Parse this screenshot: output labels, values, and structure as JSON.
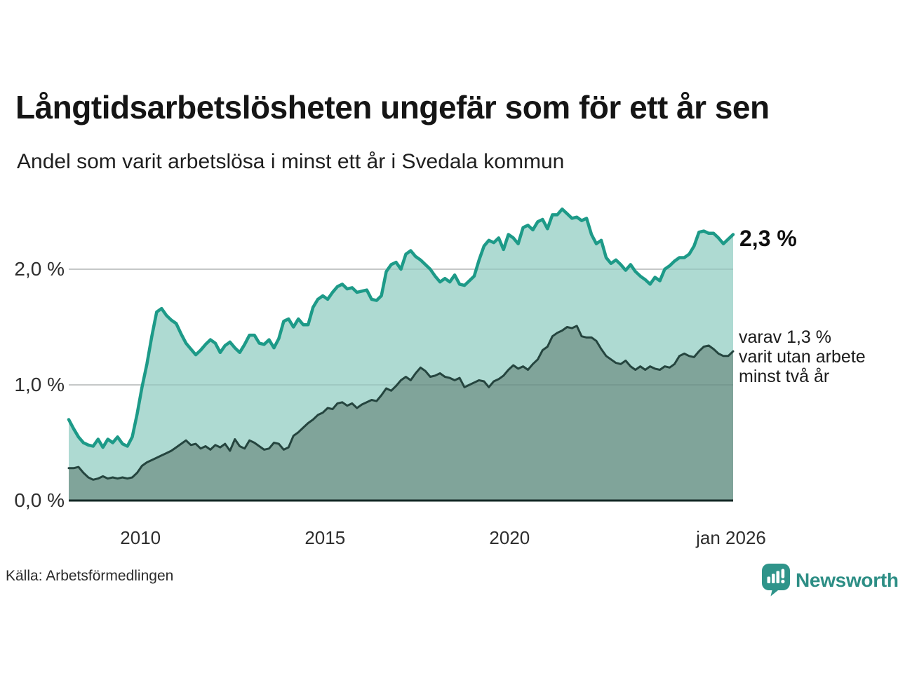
{
  "title": "Långtidsarbetslösheten ungefär som för ett år sen",
  "subtitle": "Andel som varit arbetslösa i minst ett år i Svedala kommun",
  "source": "Källa: Arbetsförmedlingen",
  "brand": {
    "name": "Newsworthy",
    "color": "#2d8e85",
    "icon_color": "#2f948a",
    "icon": "speech-bubble-bar-chart-icon"
  },
  "annotations": {
    "series1_end_label": "2,3 %",
    "series2_end_label_lines": [
      "varav 1,3 %",
      "varit utan arbete",
      "minst två år"
    ]
  },
  "chart_data": {
    "type": "area",
    "title": "Långtidsarbetslösheten ungefär som för ett år sen",
    "subtitle": "Andel som varit arbetslösa i minst ett år i Svedala kommun",
    "x_start": 2008.0,
    "x_end": 2026.0,
    "x_unit": "time, monthly observations",
    "ylim": [
      0,
      2.63
    ],
    "grid": "horizontal",
    "grid_color": "#d9d9d9",
    "grid_overlay_color": "rgba(30,55,55,0.10)",
    "axis_color": "#132826",
    "yticks": [
      {
        "value": 0.0,
        "label": "0,0 %"
      },
      {
        "value": 1.0,
        "label": "1,0 %"
      },
      {
        "value": 2.0,
        "label": "2,0 %"
      }
    ],
    "xticks": [
      {
        "value": 2010.0,
        "label": "2010"
      },
      {
        "value": 2015.0,
        "label": "2015"
      },
      {
        "value": 2020.0,
        "label": "2020"
      },
      {
        "value": 2026.0,
        "label": "jan 2026"
      }
    ],
    "series": [
      {
        "name": "Andel arbetslösa minst ett år",
        "line_color": "#1d9a88",
        "fill_color": "#aedad2",
        "line_width": 4.5,
        "end_value_pct": 2.3,
        "values": [
          0.7,
          0.62,
          0.55,
          0.5,
          0.48,
          0.47,
          0.53,
          0.46,
          0.53,
          0.5,
          0.55,
          0.49,
          0.47,
          0.55,
          0.75,
          0.98,
          1.18,
          1.42,
          1.63,
          1.66,
          1.6,
          1.56,
          1.53,
          1.44,
          1.36,
          1.31,
          1.26,
          1.3,
          1.35,
          1.39,
          1.36,
          1.28,
          1.34,
          1.37,
          1.32,
          1.28,
          1.35,
          1.43,
          1.43,
          1.36,
          1.35,
          1.39,
          1.32,
          1.4,
          1.55,
          1.57,
          1.5,
          1.57,
          1.52,
          1.52,
          1.67,
          1.74,
          1.77,
          1.74,
          1.8,
          1.85,
          1.87,
          1.83,
          1.84,
          1.8,
          1.81,
          1.82,
          1.74,
          1.73,
          1.77,
          1.98,
          2.04,
          2.06,
          2.0,
          2.13,
          2.16,
          2.11,
          2.08,
          2.04,
          2.0,
          1.94,
          1.89,
          1.92,
          1.89,
          1.95,
          1.87,
          1.86,
          1.9,
          1.94,
          2.08,
          2.2,
          2.25,
          2.23,
          2.27,
          2.17,
          2.3,
          2.27,
          2.22,
          2.36,
          2.38,
          2.34,
          2.41,
          2.43,
          2.35,
          2.47,
          2.47,
          2.52,
          2.48,
          2.44,
          2.45,
          2.42,
          2.44,
          2.3,
          2.22,
          2.25,
          2.1,
          2.05,
          2.08,
          2.04,
          1.99,
          2.04,
          1.98,
          1.94,
          1.91,
          1.87,
          1.93,
          1.9,
          2.0,
          2.03,
          2.07,
          2.1,
          2.1,
          2.13,
          2.2,
          2.32,
          2.33,
          2.31,
          2.31,
          2.27,
          2.22,
          2.26,
          2.3
        ]
      },
      {
        "name": "Varav utan arbete minst två år",
        "line_color": "#25453f",
        "fill_color": "#80a49a",
        "line_width": 3,
        "end_value_pct": 1.3,
        "values": [
          0.28,
          0.28,
          0.29,
          0.24,
          0.2,
          0.18,
          0.19,
          0.21,
          0.19,
          0.2,
          0.19,
          0.2,
          0.19,
          0.2,
          0.24,
          0.3,
          0.33,
          0.35,
          0.37,
          0.39,
          0.41,
          0.43,
          0.46,
          0.49,
          0.52,
          0.48,
          0.49,
          0.45,
          0.47,
          0.44,
          0.48,
          0.46,
          0.49,
          0.43,
          0.53,
          0.47,
          0.45,
          0.52,
          0.5,
          0.47,
          0.44,
          0.45,
          0.5,
          0.49,
          0.44,
          0.46,
          0.56,
          0.59,
          0.63,
          0.67,
          0.7,
          0.74,
          0.76,
          0.8,
          0.79,
          0.84,
          0.85,
          0.82,
          0.84,
          0.8,
          0.83,
          0.85,
          0.87,
          0.86,
          0.91,
          0.97,
          0.95,
          0.99,
          1.04,
          1.07,
          1.04,
          1.1,
          1.15,
          1.12,
          1.07,
          1.08,
          1.1,
          1.07,
          1.06,
          1.04,
          1.06,
          0.98,
          1.0,
          1.02,
          1.04,
          1.03,
          0.98,
          1.03,
          1.05,
          1.08,
          1.13,
          1.17,
          1.14,
          1.16,
          1.13,
          1.18,
          1.22,
          1.3,
          1.33,
          1.42,
          1.45,
          1.47,
          1.5,
          1.49,
          1.51,
          1.42,
          1.41,
          1.41,
          1.38,
          1.31,
          1.25,
          1.22,
          1.19,
          1.18,
          1.21,
          1.16,
          1.13,
          1.16,
          1.13,
          1.16,
          1.14,
          1.13,
          1.16,
          1.15,
          1.18,
          1.25,
          1.27,
          1.25,
          1.24,
          1.29,
          1.33,
          1.34,
          1.31,
          1.27,
          1.25,
          1.25,
          1.29
        ]
      }
    ]
  }
}
